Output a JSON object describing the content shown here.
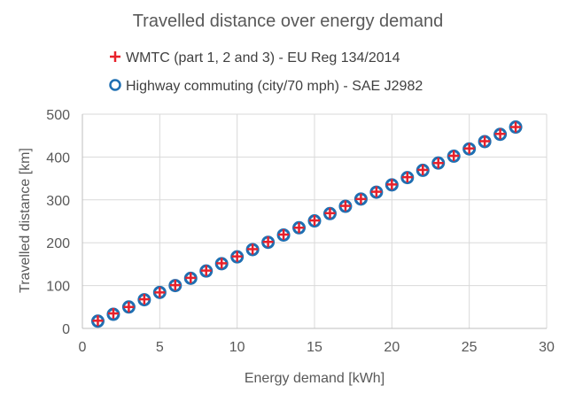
{
  "chart_data": {
    "type": "scatter",
    "title": "Travelled distance over energy demand",
    "xlabel": "Energy demand [kWh]",
    "ylabel": "Travelled distance [km]",
    "xlim": [
      0,
      30
    ],
    "ylim": [
      0,
      500
    ],
    "xticks": [
      0,
      5,
      10,
      15,
      20,
      25,
      30
    ],
    "yticks": [
      0,
      100,
      200,
      300,
      400,
      500
    ],
    "grid": true,
    "legend_position": "top",
    "series": [
      {
        "name": "WMTC (part 1, 2 and 3) - EU Reg 134/2014",
        "marker": "plus",
        "color": "#e8212b",
        "x": [
          1,
          2,
          3,
          4,
          5,
          6,
          7,
          8,
          9,
          10,
          11,
          12,
          13,
          14,
          15,
          16,
          17,
          18,
          19,
          20,
          21,
          22,
          23,
          24,
          25,
          26,
          27,
          28
        ],
        "y": [
          18,
          35,
          50,
          68,
          84,
          101,
          118,
          135,
          152,
          168,
          185,
          202,
          219,
          235,
          252,
          269,
          286,
          302,
          319,
          336,
          353,
          370,
          386,
          403,
          420,
          437,
          454,
          470
        ]
      },
      {
        "name": "Highway commuting (city/70 mph) - SAE J2982",
        "marker": "circle",
        "color": "#1f6fb2",
        "x": [
          1,
          2,
          3,
          4,
          5,
          6,
          7,
          8,
          9,
          10,
          11,
          12,
          13,
          14,
          15,
          16,
          17,
          18,
          19,
          20,
          21,
          22,
          23,
          24,
          25,
          26,
          27,
          28
        ],
        "y": [
          17,
          33,
          50,
          67,
          84,
          100,
          117,
          134,
          151,
          167,
          184,
          201,
          218,
          235,
          251,
          268,
          285,
          302,
          318,
          335,
          352,
          369,
          386,
          402,
          419,
          436,
          453,
          470
        ]
      }
    ]
  }
}
